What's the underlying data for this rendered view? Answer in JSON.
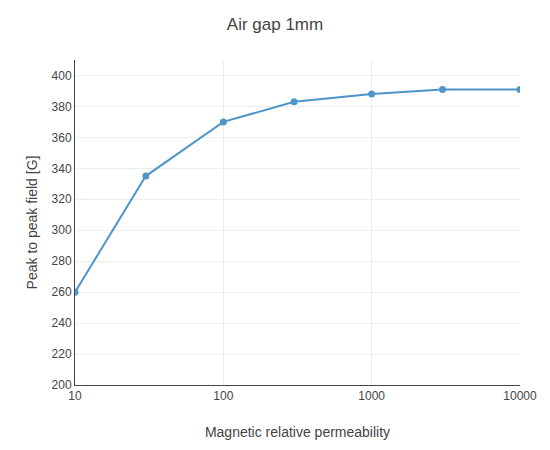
{
  "chart_data": {
    "type": "line",
    "title": "Air gap 1mm",
    "xlabel": "Magnetic relative permeability",
    "ylabel": "Peak to peak field [G]",
    "x": [
      10,
      30,
      100,
      300,
      1000,
      3000,
      10000
    ],
    "values": [
      260,
      335,
      370,
      383,
      388,
      391,
      391
    ],
    "color": "#4f96c8",
    "marker": "circle",
    "line_style": "solid",
    "log": "x",
    "xlim": [
      10,
      10000
    ],
    "xticks": [
      10,
      100,
      1000,
      10000
    ],
    "ylim": [
      200,
      410
    ],
    "yticks": [
      200,
      220,
      240,
      260,
      280,
      300,
      320,
      340,
      360,
      380,
      400
    ],
    "grid": true
  }
}
